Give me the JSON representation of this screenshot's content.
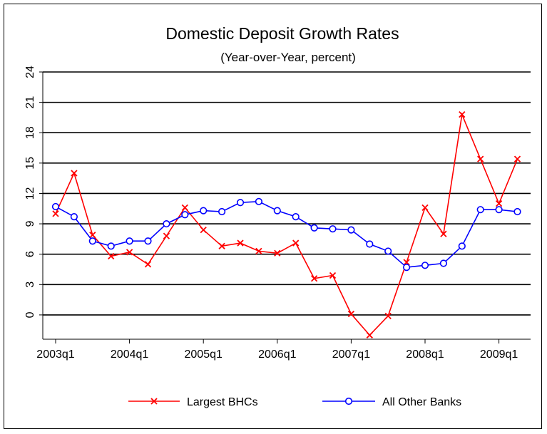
{
  "chart_data": {
    "type": "line",
    "title": "Domestic Deposit Growth Rates",
    "subtitle": "(Year-over-Year, percent)",
    "xlabel": "",
    "ylabel": "",
    "x_ticks": [
      "2003q1",
      "2004q1",
      "2005q1",
      "2006q1",
      "2007q1",
      "2008q1",
      "2009q1"
    ],
    "y_ticks": [
      0,
      3,
      6,
      9,
      12,
      15,
      18,
      21,
      24
    ],
    "ylim": [
      -2.4,
      24
    ],
    "xlim": [
      "2003q1",
      "2009q2"
    ],
    "grid": "horizontal",
    "legend_position": "bottom",
    "x": [
      "2003q1",
      "2003q2",
      "2003q3",
      "2003q4",
      "2004q1",
      "2004q2",
      "2004q3",
      "2004q4",
      "2005q1",
      "2005q2",
      "2005q3",
      "2005q4",
      "2006q1",
      "2006q2",
      "2006q3",
      "2006q4",
      "2007q1",
      "2007q2",
      "2007q3",
      "2007q4",
      "2008q1",
      "2008q2",
      "2008q3",
      "2008q4",
      "2009q1",
      "2009q2"
    ],
    "series": [
      {
        "name": "Largest BHCs",
        "color": "#ff0000",
        "marker": "x",
        "values": [
          10.0,
          14.0,
          7.9,
          5.8,
          6.2,
          5.0,
          7.8,
          10.6,
          8.4,
          6.8,
          7.1,
          6.3,
          6.1,
          7.1,
          3.6,
          3.9,
          0.1,
          -2.0,
          -0.1,
          5.2,
          10.6,
          8.0,
          19.8,
          15.4,
          11.0,
          15.4
        ]
      },
      {
        "name": "All Other Banks",
        "color": "#0000ff",
        "marker": "o",
        "values": [
          10.7,
          9.7,
          7.3,
          6.8,
          7.3,
          7.3,
          9.0,
          9.9,
          10.3,
          10.2,
          11.1,
          11.2,
          10.3,
          9.7,
          8.6,
          8.5,
          8.4,
          7.0,
          6.3,
          4.7,
          4.9,
          5.1,
          6.8,
          10.4,
          10.4,
          10.2
        ]
      }
    ]
  }
}
